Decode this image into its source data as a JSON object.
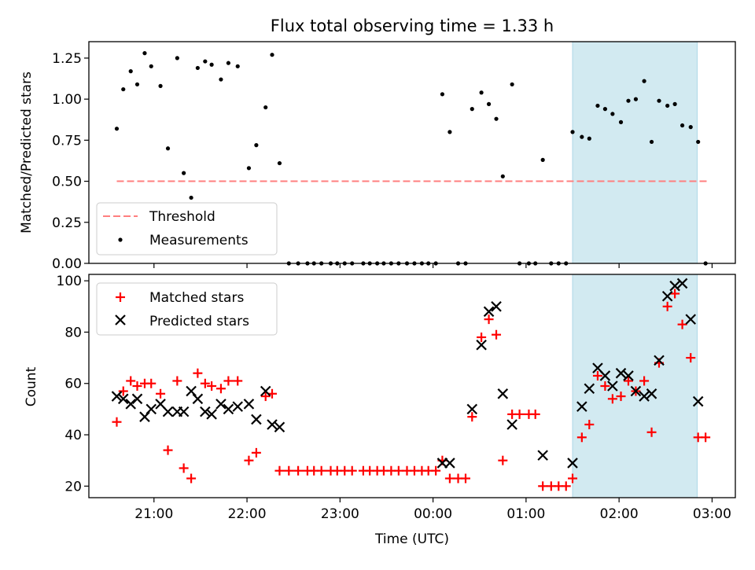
{
  "chart_data": [
    {
      "type": "scatter",
      "title": "Flux total observing time = 1.33 h",
      "xlabel": "",
      "ylabel": "Matched/Predicted stars",
      "x_unit": "UTC time, hours (wraps past 24:00)",
      "xlim": [
        20.3,
        27.25
      ],
      "ylim": [
        0,
        1.35
      ],
      "x_tick_labels": [
        "21:00",
        "22:00",
        "23:00",
        "00:00",
        "01:00",
        "02:00",
        "03:00"
      ],
      "y_ticks": [
        0.0,
        0.25,
        0.5,
        0.75,
        1.0,
        1.25
      ],
      "y_tick_labels": [
        "0.00",
        "0.25",
        "0.50",
        "0.75",
        "1.00",
        "1.25"
      ],
      "grid": false,
      "legend": {
        "placement": "lower-left",
        "entries": [
          "Threshold",
          "Measurements"
        ]
      },
      "highlight_span": {
        "x": [
          25.5,
          26.84
        ],
        "color": "#add8e6"
      },
      "threshold": {
        "name": "Threshold",
        "value": 0.5,
        "x": [
          20.6,
          26.95
        ],
        "color": "#ff7f7f",
        "style": "dashed"
      },
      "series": [
        {
          "name": "Measurements",
          "marker": "dot",
          "color": "#000000",
          "points": [
            [
              20.6,
              0.82
            ],
            [
              20.67,
              1.06
            ],
            [
              20.75,
              1.17
            ],
            [
              20.82,
              1.09
            ],
            [
              20.9,
              1.28
            ],
            [
              20.97,
              1.2
            ],
            [
              21.07,
              1.08
            ],
            [
              21.15,
              0.7
            ],
            [
              21.25,
              1.25
            ],
            [
              21.32,
              0.55
            ],
            [
              21.4,
              0.4
            ],
            [
              21.47,
              1.19
            ],
            [
              21.55,
              1.23
            ],
            [
              21.62,
              1.21
            ],
            [
              21.72,
              1.12
            ],
            [
              21.8,
              1.22
            ],
            [
              21.9,
              1.2
            ],
            [
              22.02,
              0.58
            ],
            [
              22.1,
              0.72
            ],
            [
              22.2,
              0.95
            ],
            [
              22.27,
              1.27
            ],
            [
              22.35,
              0.61
            ],
            [
              22.45,
              0.0
            ],
            [
              22.55,
              0.0
            ],
            [
              22.65,
              0.0
            ],
            [
              22.72,
              0.0
            ],
            [
              22.8,
              0.0
            ],
            [
              22.9,
              0.0
            ],
            [
              22.97,
              0.0
            ],
            [
              23.05,
              0.0
            ],
            [
              23.13,
              0.0
            ],
            [
              23.25,
              0.0
            ],
            [
              23.32,
              0.0
            ],
            [
              23.4,
              0.0
            ],
            [
              23.47,
              0.0
            ],
            [
              23.55,
              0.0
            ],
            [
              23.63,
              0.0
            ],
            [
              23.72,
              0.0
            ],
            [
              23.8,
              0.0
            ],
            [
              23.88,
              0.0
            ],
            [
              23.95,
              0.0
            ],
            [
              24.03,
              0.0
            ],
            [
              24.1,
              1.03
            ],
            [
              24.18,
              0.8
            ],
            [
              24.27,
              0.0
            ],
            [
              24.35,
              0.0
            ],
            [
              24.42,
              0.94
            ],
            [
              24.52,
              1.04
            ],
            [
              24.6,
              0.97
            ],
            [
              24.68,
              0.88
            ],
            [
              24.75,
              0.53
            ],
            [
              24.85,
              1.09
            ],
            [
              24.93,
              0.0
            ],
            [
              25.03,
              0.0
            ],
            [
              25.1,
              0.0
            ],
            [
              25.18,
              0.63
            ],
            [
              25.27,
              0.0
            ],
            [
              25.35,
              0.0
            ],
            [
              25.43,
              0.0
            ],
            [
              25.5,
              0.8
            ],
            [
              25.6,
              0.77
            ],
            [
              25.68,
              0.76
            ],
            [
              25.77,
              0.96
            ],
            [
              25.85,
              0.94
            ],
            [
              25.93,
              0.91
            ],
            [
              26.02,
              0.86
            ],
            [
              26.1,
              0.99
            ],
            [
              26.18,
              1.0
            ],
            [
              26.27,
              1.11
            ],
            [
              26.35,
              0.74
            ],
            [
              26.43,
              0.99
            ],
            [
              26.52,
              0.96
            ],
            [
              26.6,
              0.97
            ],
            [
              26.68,
              0.84
            ],
            [
              26.77,
              0.83
            ],
            [
              26.85,
              0.74
            ],
            [
              26.93,
              0.0
            ]
          ]
        }
      ]
    },
    {
      "type": "scatter",
      "title": "",
      "xlabel": "Time (UTC)",
      "ylabel": "Count",
      "x_unit": "UTC time, hours (wraps past 24:00)",
      "xlim": [
        20.3,
        27.25
      ],
      "ylim": [
        15.5,
        102.5
      ],
      "x_tick_labels": [
        "21:00",
        "22:00",
        "23:00",
        "00:00",
        "01:00",
        "02:00",
        "03:00"
      ],
      "y_ticks": [
        20,
        40,
        60,
        80,
        100
      ],
      "y_tick_labels": [
        "20",
        "40",
        "60",
        "80",
        "100"
      ],
      "grid": false,
      "legend": {
        "placement": "upper-left",
        "entries": [
          "Matched stars",
          "Predicted stars"
        ]
      },
      "highlight_span": {
        "x": [
          25.5,
          26.84
        ],
        "color": "#add8e6"
      },
      "series": [
        {
          "name": "Matched stars",
          "marker": "plus",
          "color": "#ff0000",
          "points": [
            [
              20.6,
              45
            ],
            [
              20.67,
              57
            ],
            [
              20.75,
              61
            ],
            [
              20.82,
              59
            ],
            [
              20.9,
              60
            ],
            [
              20.97,
              60
            ],
            [
              21.07,
              56
            ],
            [
              21.15,
              34
            ],
            [
              21.25,
              61
            ],
            [
              21.32,
              27
            ],
            [
              21.4,
              23
            ],
            [
              21.47,
              64
            ],
            [
              21.55,
              60
            ],
            [
              21.62,
              59
            ],
            [
              21.72,
              58
            ],
            [
              21.8,
              61
            ],
            [
              21.9,
              61
            ],
            [
              22.02,
              30
            ],
            [
              22.1,
              33
            ],
            [
              22.2,
              55
            ],
            [
              22.27,
              56
            ],
            [
              22.35,
              26
            ],
            [
              22.45,
              26
            ],
            [
              22.55,
              26
            ],
            [
              22.65,
              26
            ],
            [
              22.72,
              26
            ],
            [
              22.8,
              26
            ],
            [
              22.9,
              26
            ],
            [
              22.97,
              26
            ],
            [
              23.05,
              26
            ],
            [
              23.13,
              26
            ],
            [
              23.25,
              26
            ],
            [
              23.32,
              26
            ],
            [
              23.4,
              26
            ],
            [
              23.47,
              26
            ],
            [
              23.55,
              26
            ],
            [
              23.63,
              26
            ],
            [
              23.72,
              26
            ],
            [
              23.8,
              26
            ],
            [
              23.88,
              26
            ],
            [
              23.95,
              26
            ],
            [
              24.03,
              26
            ],
            [
              24.1,
              30
            ],
            [
              24.18,
              23
            ],
            [
              24.27,
              23
            ],
            [
              24.35,
              23
            ],
            [
              24.42,
              47
            ],
            [
              24.52,
              78
            ],
            [
              24.6,
              85
            ],
            [
              24.68,
              79
            ],
            [
              24.75,
              30
            ],
            [
              24.85,
              48
            ],
            [
              24.93,
              48
            ],
            [
              25.03,
              48
            ],
            [
              25.1,
              48
            ],
            [
              25.18,
              20
            ],
            [
              25.27,
              20
            ],
            [
              25.35,
              20
            ],
            [
              25.43,
              20
            ],
            [
              25.5,
              23
            ],
            [
              25.6,
              39
            ],
            [
              25.68,
              44
            ],
            [
              25.77,
              63
            ],
            [
              25.85,
              59
            ],
            [
              25.93,
              54
            ],
            [
              26.02,
              55
            ],
            [
              26.1,
              61
            ],
            [
              26.18,
              57
            ],
            [
              26.27,
              61
            ],
            [
              26.35,
              41
            ],
            [
              26.43,
              68
            ],
            [
              26.52,
              90
            ],
            [
              26.6,
              95
            ],
            [
              26.68,
              83
            ],
            [
              26.77,
              70
            ],
            [
              26.85,
              39
            ],
            [
              26.93,
              39
            ]
          ]
        },
        {
          "name": "Predicted stars",
          "marker": "cross",
          "color": "#000000",
          "points": [
            [
              20.6,
              55
            ],
            [
              20.67,
              54
            ],
            [
              20.75,
              52
            ],
            [
              20.82,
              54
            ],
            [
              20.9,
              47
            ],
            [
              20.97,
              50
            ],
            [
              21.07,
              52
            ],
            [
              21.15,
              49
            ],
            [
              21.25,
              49
            ],
            [
              21.32,
              49
            ],
            [
              21.4,
              57
            ],
            [
              21.47,
              54
            ],
            [
              21.55,
              49
            ],
            [
              21.62,
              48
            ],
            [
              21.72,
              52
            ],
            [
              21.8,
              50
            ],
            [
              21.9,
              51
            ],
            [
              22.02,
              52
            ],
            [
              22.1,
              46
            ],
            [
              22.2,
              57
            ],
            [
              22.27,
              44
            ],
            [
              22.35,
              43
            ],
            [
              24.1,
              29
            ],
            [
              24.18,
              29
            ],
            [
              24.42,
              50
            ],
            [
              24.52,
              75
            ],
            [
              24.6,
              88
            ],
            [
              24.68,
              90
            ],
            [
              24.75,
              56
            ],
            [
              24.85,
              44
            ],
            [
              25.18,
              32
            ],
            [
              25.5,
              29
            ],
            [
              25.6,
              51
            ],
            [
              25.68,
              58
            ],
            [
              25.77,
              66
            ],
            [
              25.85,
              63
            ],
            [
              25.93,
              59
            ],
            [
              26.02,
              64
            ],
            [
              26.1,
              63
            ],
            [
              26.18,
              57
            ],
            [
              26.27,
              55
            ],
            [
              26.35,
              56
            ],
            [
              26.43,
              69
            ],
            [
              26.52,
              94
            ],
            [
              26.6,
              98
            ],
            [
              26.68,
              99
            ],
            [
              26.77,
              85
            ],
            [
              26.85,
              53
            ]
          ]
        }
      ]
    }
  ]
}
